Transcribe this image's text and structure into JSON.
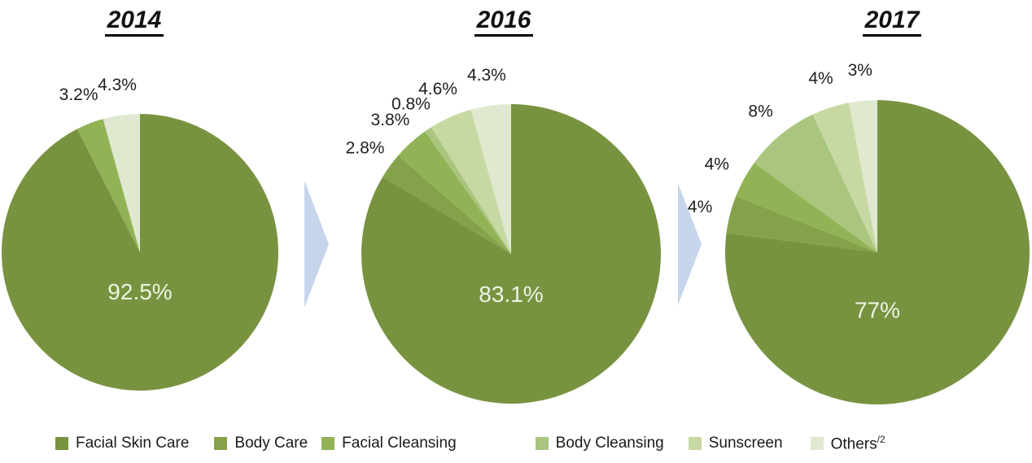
{
  "chart_data": {
    "type": "pie",
    "title": "",
    "legend_position": "bottom",
    "categories": [
      "Facial Skin Care",
      "Body Care",
      "Facial Cleansing",
      "Body Cleansing",
      "Sunscreen",
      "Others"
    ],
    "colors": [
      "#789340",
      "#84A24A",
      "#92B355",
      "#A9C57E",
      "#C7D8A3",
      "#DFE9CF"
    ],
    "others_footnote": "/2",
    "arrow_color": "#C5D5EC",
    "inside_label_color": "#EDF3E2",
    "outside_label_color": "#1f1f1f",
    "pies": [
      {
        "year": "2014",
        "slices": [
          {
            "category": "Facial Skin Care",
            "value": 92.5,
            "label": "92.5%",
            "label_inside": true
          },
          {
            "category": "Facial Cleansing",
            "value": 3.2,
            "label": "3.2%"
          },
          {
            "category": "Others",
            "value": 4.3,
            "label": "4.3%"
          }
        ]
      },
      {
        "year": "2016",
        "slices": [
          {
            "category": "Facial Skin Care",
            "value": 83.1,
            "label": "83.1%",
            "label_inside": true
          },
          {
            "category": "Body Care",
            "value": 2.8,
            "label": "2.8%"
          },
          {
            "category": "Facial Cleansing",
            "value": 3.8,
            "label": "3.8%"
          },
          {
            "category": "Body Cleansing",
            "value": 0.8,
            "label": "0.8%"
          },
          {
            "category": "Sunscreen",
            "value": 4.6,
            "label": "4.6%"
          },
          {
            "category": "Others",
            "value": 4.3,
            "label": "4.3%"
          }
        ]
      },
      {
        "year": "2017",
        "slices": [
          {
            "category": "Facial Skin Care",
            "value": 77,
            "label": "77%",
            "label_inside": true
          },
          {
            "category": "Body Care",
            "value": 4,
            "label": "4%"
          },
          {
            "category": "Facial Cleansing",
            "value": 4,
            "label": "4%"
          },
          {
            "category": "Body Cleansing",
            "value": 8,
            "label": "8%"
          },
          {
            "category": "Sunscreen",
            "value": 4,
            "label": "4%"
          },
          {
            "category": "Others",
            "value": 3,
            "label": "3%"
          }
        ]
      }
    ]
  }
}
